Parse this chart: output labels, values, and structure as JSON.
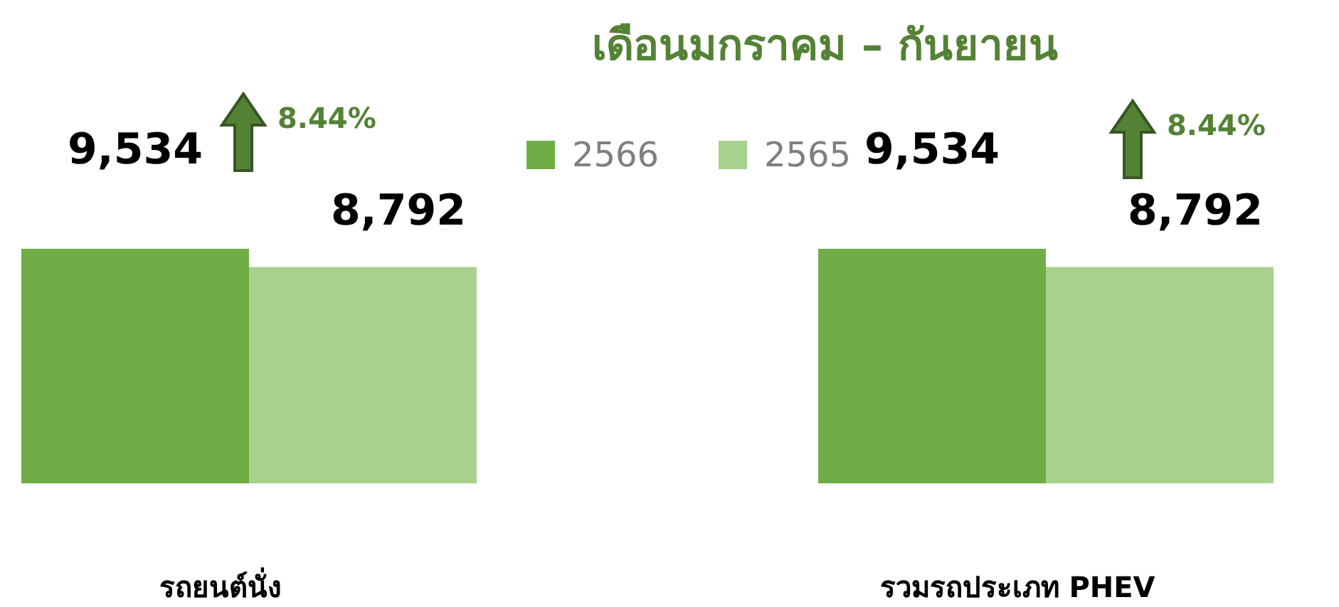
{
  "chart_data": {
    "type": "bar",
    "title": "เดือนมกราคม – กันยายน",
    "categories": [
      "รถยนต์นั่ง",
      "รวมรถประเภท PHEV"
    ],
    "series": [
      {
        "name": "2566",
        "color": "#70ad47",
        "values": [
          9534,
          9534
        ],
        "value_labels": [
          "9,534",
          "9,534"
        ]
      },
      {
        "name": "2565",
        "color": "#a9d18e",
        "values": [
          8792,
          8792
        ],
        "value_labels": [
          "8,792",
          "8,792"
        ]
      }
    ],
    "legend": "top",
    "annotations": [
      "8.44%",
      "8.44%"
    ]
  }
}
